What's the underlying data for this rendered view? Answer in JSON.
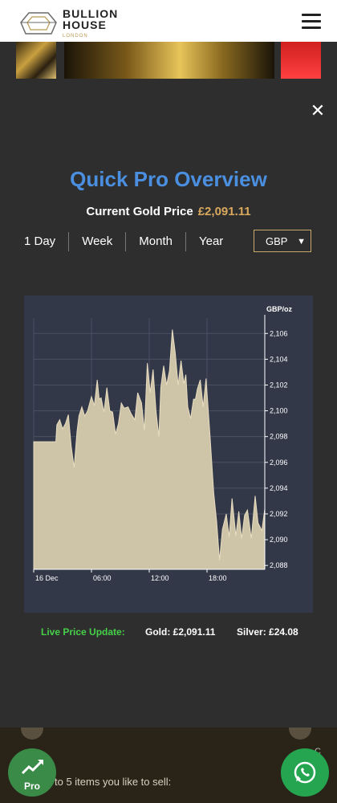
{
  "header": {
    "logo_line1": "BULLION",
    "logo_line2": "HOUSE",
    "logo_line3": "LONDON"
  },
  "modal": {
    "close_glyph": "✕",
    "title": "Quick Pro Overview",
    "price_label": "Current Gold Price",
    "price_value": "£2,091.11",
    "tabs": [
      "1 Day",
      "Week",
      "Month",
      "Year"
    ],
    "currency": "GBP",
    "live_label": "Live Price Update:",
    "gold_text": "Gold: £2,091.11",
    "silver_text": "Silver: £24.08"
  },
  "bottom": {
    "pro_label": "Pro",
    "sell_text": "to 5 items you like to sell:",
    "right_text": "C"
  },
  "colors": {
    "title": "#4a8fe0",
    "price": "#d9a95e",
    "live": "#46d04a",
    "chart_bg": "#323848",
    "area_fill": "#cec4a8"
  },
  "chart_data": {
    "type": "area",
    "unit_label": "GBP/oz",
    "x_ticks": [
      "16 Dec",
      "06:00",
      "12:00",
      "18:00"
    ],
    "y_ticks": [
      2088,
      2090,
      2092,
      2094,
      2096,
      2098,
      2100,
      2102,
      2104,
      2106
    ],
    "y_tick_labels": [
      "2,088",
      "2,090",
      "2,092",
      "2,094",
      "2,096",
      "2,098",
      "2,100",
      "2,102",
      "2,104",
      "2,106"
    ],
    "ylim": [
      2087.7,
      2107.2
    ],
    "xlim": [
      0,
      24
    ],
    "grid": true,
    "x": [
      0,
      2.3,
      2.4,
      2.7,
      3.0,
      3.3,
      3.6,
      3.9,
      4.2,
      4.5,
      4.7,
      5.0,
      5.3,
      5.6,
      6.0,
      6.3,
      6.6,
      6.8,
      7.0,
      7.3,
      7.6,
      7.9,
      8.2,
      8.5,
      8.8,
      9.1,
      9.4,
      9.8,
      10.1,
      10.5,
      10.8,
      11.2,
      11.5,
      11.8,
      12.1,
      12.4,
      12.7,
      13.0,
      13.2,
      13.5,
      13.8,
      14.1,
      14.4,
      14.7,
      15.0,
      15.3,
      15.6,
      15.8,
      16.0,
      16.3,
      16.6,
      16.8,
      17.0,
      17.3,
      17.6,
      17.9,
      18.3,
      18.7,
      19.0,
      19.3,
      19.6,
      20.0,
      20.3,
      20.6,
      21.0,
      21.3,
      21.6,
      21.9,
      22.2,
      22.6,
      23.0,
      23.3,
      23.7,
      24
    ],
    "y": [
      2097.6,
      2097.6,
      2098.9,
      2099.3,
      2098.6,
      2099.0,
      2099.7,
      2097.2,
      2095.6,
      2098.4,
      2099.6,
      2100.3,
      2099.6,
      2100.0,
      2101.1,
      2100.4,
      2102.4,
      2100.9,
      2101.0,
      2099.9,
      2101.8,
      2100.0,
      2099.9,
      2098.2,
      2099.0,
      2100.6,
      2100.2,
      2100.3,
      2099.8,
      2099.3,
      2101.4,
      2100.6,
      2098.5,
      2103.7,
      2101.4,
      2103.2,
      2100.0,
      2098.0,
      2101.8,
      2103.5,
      2102.0,
      2103.1,
      2106.3,
      2104.5,
      2102.0,
      2103.9,
      2102.1,
      2102.8,
      2100.3,
      2099.4,
      2100.9,
      2100.9,
      2101.7,
      2102.4,
      2100.3,
      2102.5,
      2098.2,
      2093.6,
      2091.4,
      2088.4,
      2090.8,
      2092.0,
      2090.2,
      2093.2,
      2090.3,
      2092.2,
      2090.1,
      2091.9,
      2092.3,
      2090.1,
      2093.4,
      2091.3,
      2090.7,
      2092.4
    ]
  }
}
